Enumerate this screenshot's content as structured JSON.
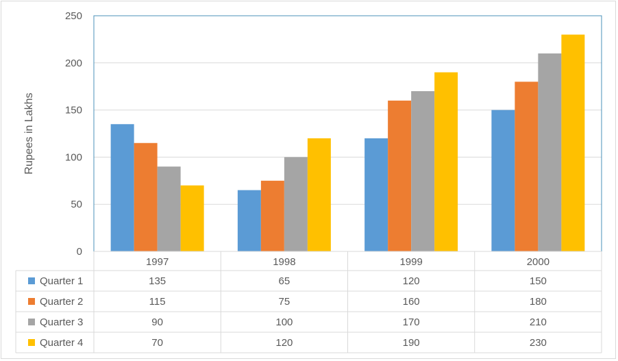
{
  "chart_data": {
    "type": "bar",
    "title": "",
    "xlabel": "",
    "ylabel": "Rupees in Lakhs",
    "ylim": [
      0,
      250
    ],
    "yticks": [
      0,
      50,
      100,
      150,
      200,
      250
    ],
    "grid": true,
    "legend_placement": "data-table",
    "categories": [
      "1997",
      "1998",
      "1999",
      "2000"
    ],
    "series": [
      {
        "name": "Quarter 1",
        "color": "#5b9bd5",
        "values": [
          135,
          65,
          120,
          150
        ]
      },
      {
        "name": "Quarter 2",
        "color": "#ed7d31",
        "values": [
          115,
          75,
          160,
          180
        ]
      },
      {
        "name": "Quarter 3",
        "color": "#a5a5a5",
        "values": [
          90,
          100,
          170,
          210
        ]
      },
      {
        "name": "Quarter 4",
        "color": "#ffc000",
        "values": [
          70,
          120,
          190,
          230
        ]
      }
    ]
  }
}
